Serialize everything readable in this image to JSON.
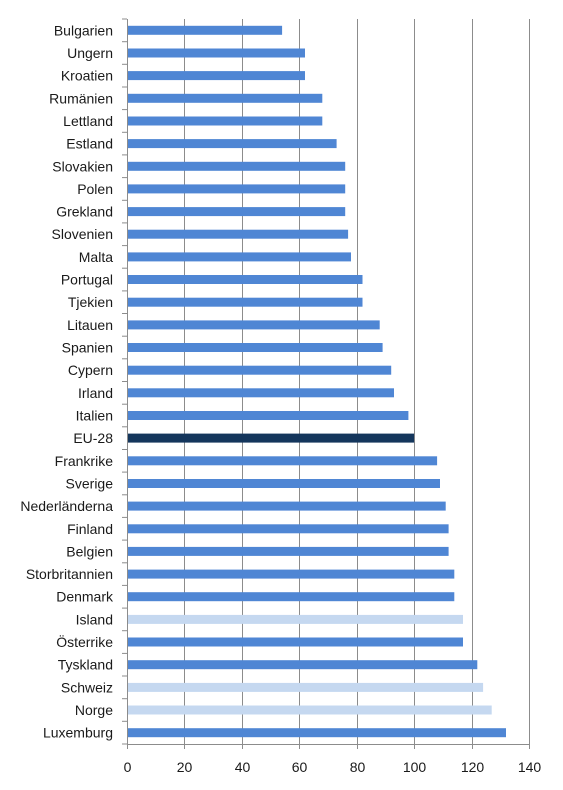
{
  "chart_data": {
    "type": "bar",
    "orientation": "horizontal",
    "categories": [
      "Bulgarien",
      "Ungern",
      "Kroatien",
      "Rumänien",
      "Lettland",
      "Estland",
      "Slovakien",
      "Polen",
      "Grekland",
      "Slovenien",
      "Malta",
      "Portugal",
      "Tjekien",
      "Litauen",
      "Spanien",
      "Cypern",
      "Irland",
      "Italien",
      "EU-28",
      "Frankrike",
      "Sverige",
      "Nederländerna",
      "Finland",
      "Belgien",
      "Storbritannien",
      "Denmark",
      "Island",
      "Österrike",
      "Tyskland",
      "Schweiz",
      "Norge",
      "Luxemburg"
    ],
    "values": [
      54,
      62,
      62,
      68,
      68,
      73,
      76,
      76,
      76,
      77,
      78,
      82,
      82,
      88,
      89,
      92,
      93,
      98,
      100,
      108,
      109,
      111,
      112,
      112,
      114,
      114,
      117,
      117,
      122,
      124,
      127,
      132
    ],
    "bar_colors": [
      "#4f86d4",
      "#4f86d4",
      "#4f86d4",
      "#4f86d4",
      "#4f86d4",
      "#4f86d4",
      "#4f86d4",
      "#4f86d4",
      "#4f86d4",
      "#4f86d4",
      "#4f86d4",
      "#4f86d4",
      "#4f86d4",
      "#4f86d4",
      "#4f86d4",
      "#4f86d4",
      "#4f86d4",
      "#4f86d4",
      "#14365c",
      "#4f86d4",
      "#4f86d4",
      "#4f86d4",
      "#4f86d4",
      "#4f86d4",
      "#4f86d4",
      "#4f86d4",
      "#c5d8f0",
      "#4f86d4",
      "#4f86d4",
      "#c5d8f0",
      "#c5d8f0",
      "#4f86d4"
    ],
    "xlim": [
      0,
      140
    ],
    "xticks": [
      0,
      20,
      40,
      60,
      80,
      100,
      120,
      140
    ],
    "grid": "vertical",
    "title": "",
    "xlabel": "",
    "ylabel": "",
    "legend": "none"
  },
  "colors": {
    "gridline": "#8c8c8c",
    "axis": "#8c8c8c",
    "text": "#1a1a1a"
  }
}
